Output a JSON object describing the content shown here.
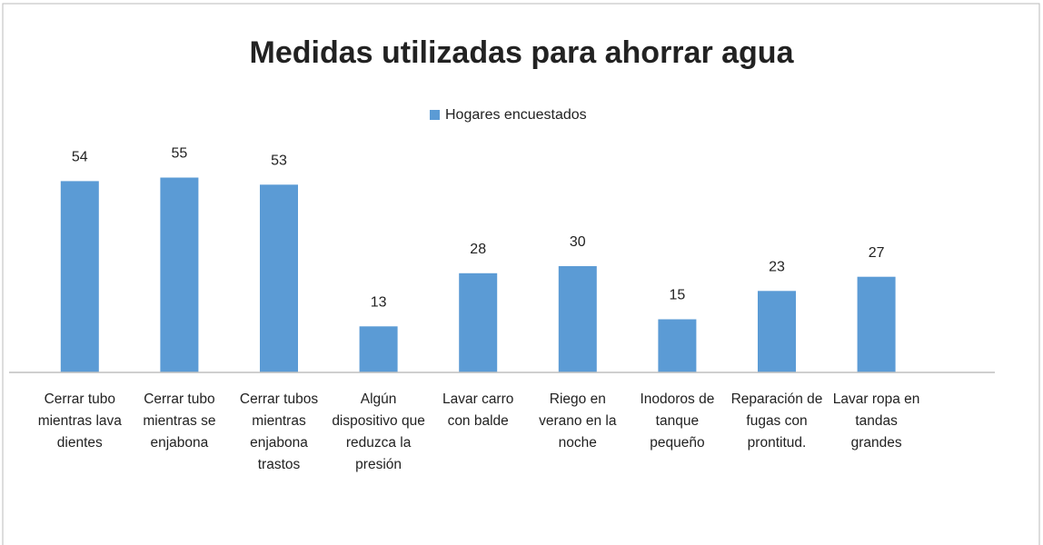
{
  "chart_data": {
    "type": "bar",
    "title": "Medidas utilizadas para ahorrar agua",
    "series": [
      {
        "name": "Hogares encuestados",
        "color": "#5b9bd5",
        "values": [
          54,
          55,
          53,
          13,
          28,
          30,
          15,
          23,
          27
        ]
      }
    ],
    "categories": [
      "Cerrar tubo mientras lava dientes",
      "Cerrar tubo mientras se enjabona",
      "Cerrar tubos mientras enjabona trastos",
      "Algún dispositivo que reduzca la presión",
      "Lavar carro con balde",
      "Riego en verano en la noche",
      "Inodoros de tanque pequeño",
      "Reparación de fugas con prontitud.",
      "Lavar ropa en tandas grandes"
    ],
    "ylim": [
      0,
      60
    ],
    "legend": "top"
  }
}
